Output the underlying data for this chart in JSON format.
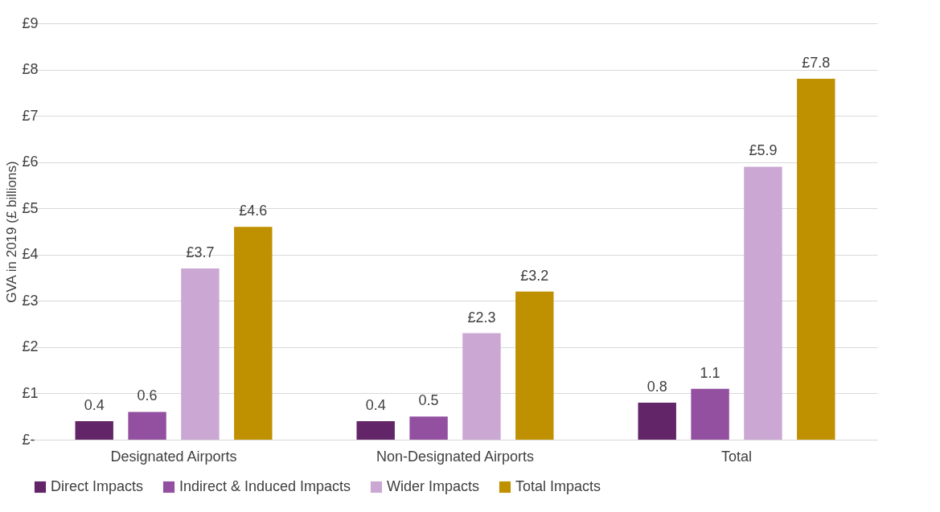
{
  "chart_data": {
    "type": "bar",
    "ylabel": "GVA in 2019 (£ billions)",
    "categories": [
      "Designated Airports",
      "Non-Designated Airports",
      "Total"
    ],
    "series": [
      {
        "name": "Direct Impacts",
        "color": "#622567",
        "values": [
          0.4,
          0.4,
          0.8
        ],
        "value_labels": [
          "0.4",
          "0.4",
          "0.8"
        ]
      },
      {
        "name": "Indirect & Induced Impacts",
        "color": "#9350a1",
        "values": [
          0.6,
          0.5,
          1.1
        ],
        "value_labels": [
          "0.6",
          "0.5",
          "1.1"
        ]
      },
      {
        "name": "Wider Impacts",
        "color": "#cba7d3",
        "values": [
          3.7,
          2.3,
          5.9
        ],
        "value_labels": [
          "£3.7",
          "£2.3",
          "£5.9"
        ]
      },
      {
        "name": "Total Impacts",
        "color": "#bf9000",
        "values": [
          4.6,
          3.2,
          7.8
        ],
        "value_labels": [
          "£4.6",
          "£3.2",
          "£7.8"
        ]
      }
    ],
    "ylim": [
      0,
      9
    ],
    "yticks": [
      {
        "value": 0,
        "label": "£-"
      },
      {
        "value": 1,
        "label": "£1"
      },
      {
        "value": 2,
        "label": "£2"
      },
      {
        "value": 3,
        "label": "£3"
      },
      {
        "value": 4,
        "label": "£4"
      },
      {
        "value": 5,
        "label": "£5"
      },
      {
        "value": 6,
        "label": "£6"
      },
      {
        "value": 7,
        "label": "£7"
      },
      {
        "value": 8,
        "label": "£8"
      },
      {
        "value": 9,
        "label": "£9"
      }
    ],
    "grid": "y",
    "legend": "bottom"
  }
}
